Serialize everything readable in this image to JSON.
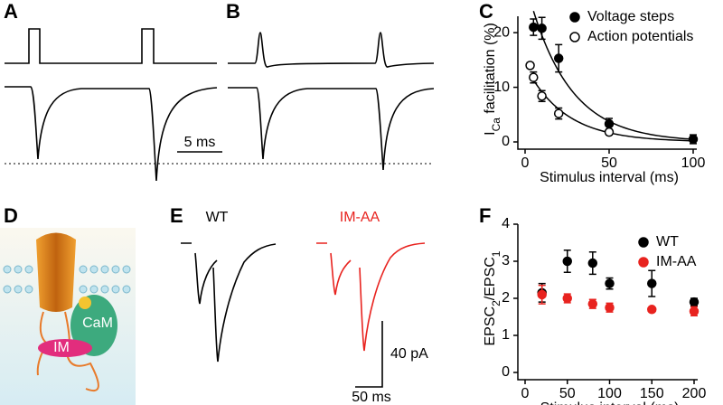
{
  "panels": {
    "a": "A",
    "b": "B",
    "c": "C",
    "d": "D",
    "e": "E",
    "f": "F"
  },
  "scale_bars": {
    "b": "5 ms",
    "e_y": "40 pA",
    "e_x": "50 ms"
  },
  "panel_d": {
    "cam": "CaM",
    "im": "IM"
  },
  "panel_e": {
    "wt": "WT",
    "mutant": "IM-AA"
  },
  "chart_data": [
    {
      "type": "scatter",
      "x_label": "Stimulus interval (ms)",
      "y_label": {
        "main": "I",
        "sub": "Ca",
        "rest": " facilitation (%)"
      },
      "xlim": [
        0,
        100
      ],
      "xticks": [
        0,
        50,
        100
      ],
      "ylim": [
        0,
        23
      ],
      "yticks": [
        0,
        10,
        20
      ],
      "legend": "upper right",
      "fit_line": "exponential",
      "series": [
        {
          "name": "Voltage steps",
          "color": "#000000",
          "filled": true,
          "x": [
            5,
            10,
            20,
            50,
            100
          ],
          "values": [
            21,
            20.8,
            15.3,
            3.3,
            0.5
          ],
          "errors": [
            1.5,
            2,
            2.5,
            1,
            0.8
          ]
        },
        {
          "name": "Action potentials",
          "color": "#000000",
          "filled": false,
          "x": [
            3,
            5,
            10,
            20,
            50
          ],
          "values": [
            14,
            11.8,
            8.4,
            5.2,
            1.8
          ],
          "errors": [
            0.5,
            1,
            1,
            1,
            0.5
          ]
        }
      ]
    },
    {
      "type": "scatter",
      "x_label": "Stimulus interval (ms)",
      "y_label": {
        "main": "EPSC",
        "sub": "2",
        "rest": "/EPSC",
        "sub2": "1"
      },
      "xlim": [
        0,
        200
      ],
      "xticks": [
        0,
        50,
        100,
        150,
        200
      ],
      "ylim": [
        0,
        4
      ],
      "yticks": [
        0,
        1,
        2,
        3,
        4
      ],
      "legend": "upper right",
      "series": [
        {
          "name": "WT",
          "color": "#000000",
          "filled": true,
          "x": [
            20,
            50,
            80,
            100,
            150,
            200
          ],
          "values": [
            2.15,
            3.0,
            2.95,
            2.4,
            2.4,
            1.9
          ],
          "errors": [
            0.25,
            0.3,
            0.3,
            0.15,
            0.35,
            0.1
          ]
        },
        {
          "name": "IM-AA",
          "color": "#e8231f",
          "filled": true,
          "x": [
            20,
            50,
            80,
            100,
            150,
            200
          ],
          "values": [
            2.1,
            2.0,
            1.85,
            1.75,
            1.7,
            1.65
          ],
          "errors": [
            0.25,
            0.12,
            0.12,
            0.12,
            0.05,
            0.12
          ]
        }
      ]
    }
  ]
}
